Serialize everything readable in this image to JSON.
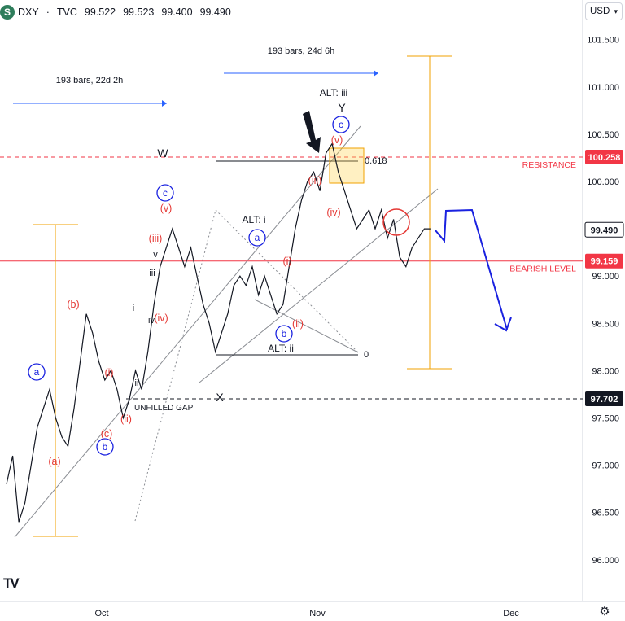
{
  "header": {
    "symbol": "DXY",
    "separator": "·",
    "source": "TVC",
    "open": "99.522",
    "high": "99.523",
    "low": "99.400",
    "close": "99.490",
    "logo_letter": "S"
  },
  "currency_selector": {
    "label": "USD",
    "icon": "chevron-down-icon"
  },
  "settings_icon": "gear-icon",
  "tradingview_logo": "TV",
  "chart_data": {
    "type": "line",
    "series_style": "ohlc-bars",
    "y_axis": {
      "ylim": [
        95.6,
        101.9
      ],
      "ticks": [
        96.0,
        96.5,
        97.0,
        97.5,
        98.0,
        98.5,
        99.0,
        99.5,
        100.0,
        100.5,
        101.0,
        101.5
      ],
      "tick_labels": [
        "96.000",
        "96.500",
        "97.000",
        "97.500",
        "98.000",
        "98.500",
        "99.000",
        "99.500",
        "100.000",
        "100.500",
        "101.000",
        "101.500"
      ]
    },
    "x_axis": {
      "tick_labels": [
        "Oct",
        "Nov",
        "Dec"
      ]
    },
    "price_tags": [
      {
        "value": 100.258,
        "label": "100.258",
        "color": "#f23645"
      },
      {
        "value": 99.49,
        "label": "99.490",
        "color": "#ffffff",
        "text_color": "#131722"
      },
      {
        "value": 99.159,
        "label": "99.159",
        "color": "#f23645"
      },
      {
        "value": 97.702,
        "label": "97.702",
        "color": "#131722"
      }
    ],
    "price_series": [
      [
        0,
        96.8
      ],
      [
        1,
        97.1
      ],
      [
        2,
        96.4
      ],
      [
        3,
        96.6
      ],
      [
        4,
        97.0
      ],
      [
        5,
        97.4
      ],
      [
        6,
        97.6
      ],
      [
        7,
        97.8
      ],
      [
        8,
        97.5
      ],
      [
        9,
        97.3
      ],
      [
        10,
        97.2
      ],
      [
        11,
        97.6
      ],
      [
        12,
        98.1
      ],
      [
        13,
        98.6
      ],
      [
        14,
        98.4
      ],
      [
        15,
        98.1
      ],
      [
        16,
        97.9
      ],
      [
        17,
        98.0
      ],
      [
        18,
        97.8
      ],
      [
        19,
        97.5
      ],
      [
        20,
        97.7
      ],
      [
        21,
        98.0
      ],
      [
        22,
        97.8
      ],
      [
        23,
        98.2
      ],
      [
        24,
        98.7
      ],
      [
        25,
        99.1
      ],
      [
        26,
        99.3
      ],
      [
        27,
        99.5
      ],
      [
        28,
        99.3
      ],
      [
        29,
        99.1
      ],
      [
        30,
        99.3
      ],
      [
        31,
        99.0
      ],
      [
        32,
        98.7
      ],
      [
        33,
        98.5
      ],
      [
        34,
        98.2
      ],
      [
        35,
        98.4
      ],
      [
        36,
        98.6
      ],
      [
        37,
        98.9
      ],
      [
        38,
        99.0
      ],
      [
        39,
        98.9
      ],
      [
        40,
        99.1
      ],
      [
        41,
        98.8
      ],
      [
        42,
        99.0
      ],
      [
        43,
        98.8
      ],
      [
        44,
        98.6
      ],
      [
        45,
        98.7
      ],
      [
        46,
        99.1
      ],
      [
        47,
        99.5
      ],
      [
        48,
        99.8
      ],
      [
        49,
        100.0
      ],
      [
        50,
        100.1
      ],
      [
        51,
        99.9
      ],
      [
        52,
        100.3
      ],
      [
        53,
        100.4
      ],
      [
        54,
        100.1
      ],
      [
        55,
        99.9
      ],
      [
        56,
        99.7
      ],
      [
        57,
        99.5
      ],
      [
        58,
        99.6
      ],
      [
        59,
        99.7
      ],
      [
        60,
        99.5
      ],
      [
        61,
        99.7
      ],
      [
        62,
        99.4
      ],
      [
        63,
        99.6
      ],
      [
        64,
        99.2
      ],
      [
        65,
        99.1
      ],
      [
        66,
        99.3
      ],
      [
        67,
        99.4
      ],
      [
        68,
        99.5
      ],
      [
        69,
        99.5
      ]
    ],
    "horizontal_levels": [
      {
        "value": 100.258,
        "label": "RESISTANCE",
        "style": "dashed",
        "color": "#f23645"
      },
      {
        "value": 99.159,
        "label": "BEARISH LEVEL",
        "style": "solid",
        "color": "#f23645"
      },
      {
        "value": 97.702,
        "label": "UNFILLED GAP",
        "style": "dashed",
        "color": "#131722"
      }
    ],
    "fib_labels": [
      "0.618",
      "0"
    ],
    "range_measures": [
      {
        "label": "193 bars, 22d 2h"
      },
      {
        "label": "193 bars, 24d 6h"
      }
    ],
    "projection": {
      "color": "#1a22e0",
      "description": "forecast path down from 99.5 toward 98.4"
    },
    "wave_labels": {
      "black": [
        "W",
        "X",
        "Y",
        "ALT: iii",
        "ALT: i",
        "ALT: ii",
        "i",
        "ii",
        "iii",
        "iv",
        "v"
      ],
      "blue_circled": [
        "a",
        "b",
        "c",
        "a",
        "b",
        "c"
      ],
      "red": [
        "(a)",
        "(b)",
        "(c)",
        "(i)",
        "(ii)",
        "(iii)",
        "(iv)",
        "(v)",
        "(i)",
        "(ii)",
        "(iii)",
        "(iv)",
        "(v)"
      ]
    }
  }
}
